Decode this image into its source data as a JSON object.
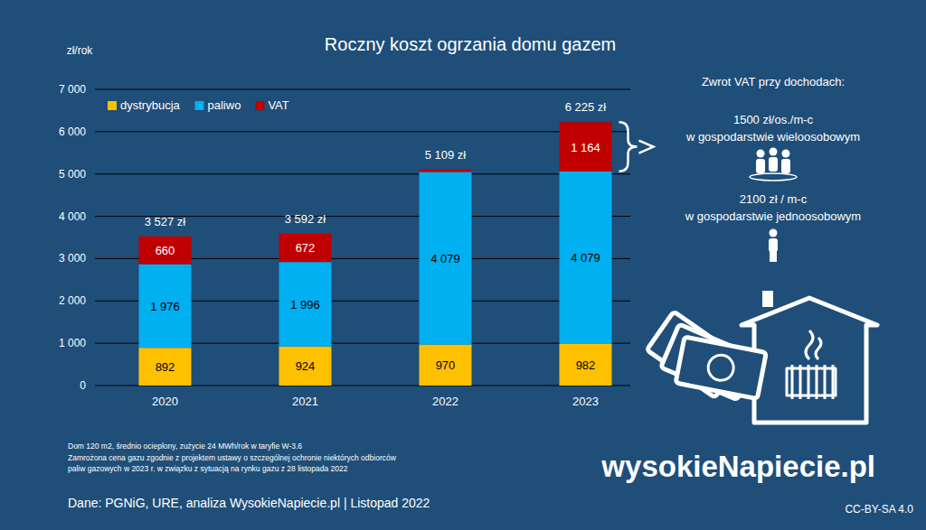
{
  "chart_data": {
    "type": "bar",
    "title": "Roczny koszt ogrzania domu gazem",
    "ylabel": "zł/rok",
    "categories": [
      "2020",
      "2021",
      "2022",
      "2023"
    ],
    "stacked": true,
    "data_labels": true,
    "legend": "upper left",
    "grid": true,
    "series": [
      {
        "name": "dystrybucja",
        "color": "#ffc000",
        "values": [
          892,
          924,
          970,
          982
        ]
      },
      {
        "name": "paliwo",
        "color": "#00b0f0",
        "values": [
          1976,
          1996,
          4079,
          4079
        ],
        "value_labels": [
          "1 976",
          "1 996",
          "4 079",
          "4 079"
        ]
      },
      {
        "name": "VAT",
        "color": "#c00000",
        "values": [
          660,
          672,
          60,
          1164
        ],
        "value_labels": [
          "660",
          "672",
          null,
          "1 164"
        ]
      }
    ],
    "totals": [
      3527,
      3592,
      5109,
      6225
    ],
    "total_labels": [
      "3 527 zł",
      "3 592 zł",
      "5 109 zł",
      "6 225 zł"
    ],
    "ylim": [
      0,
      7000
    ],
    "yticks": [
      0,
      {
        "value": 1000,
        "label": "1 000"
      },
      {
        "value": 2000,
        "label": "2 000"
      },
      {
        "value": 3000,
        "label": "3 000"
      },
      {
        "value": 4000,
        "label": "4 000"
      },
      {
        "value": 5000,
        "label": "5 000"
      },
      {
        "value": 6000,
        "label": "6 000"
      },
      {
        "value": 7000,
        "label": "7 000"
      }
    ],
    "annotations": [
      "Zwrot VAT przy dochodach:",
      "1500 zł/os./m-c",
      "w gospodarstwie wieloosobowym",
      "2100 zł / m-c",
      "w gospodarstwie jednoosobowym"
    ],
    "notes": [
      "Dom 120 m2, średnio ocieplony, zużycie 24 MWh/rok w taryfie W-3.6",
      "Zamrożona cena gazu zgodnie z projektem ustawy o szczególnej ochronie niektórych odbiorców",
      "paliw gazowych w 2023 r. w związku z sytuacją na rynku gazu z 28 listopada 2022"
    ],
    "source": "Dane: PGNiG, URE, analiza WysokieNapiecie.pl  |  Listopad 2022",
    "logo": "wysokieNapiecie.pl",
    "license": "CC-BY-SA 4.0"
  }
}
